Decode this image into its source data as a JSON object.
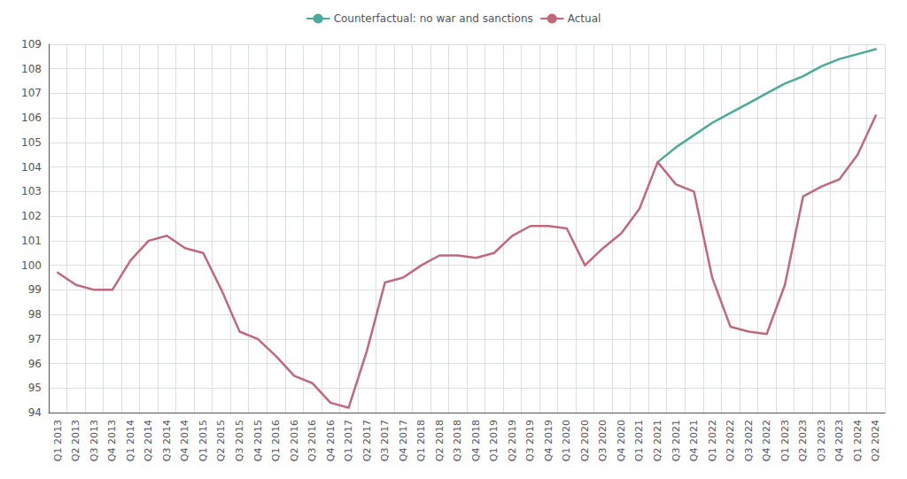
{
  "chart_data": {
    "type": "line",
    "categories": [
      "Q1 2013",
      "Q2 2013",
      "Q3 2013",
      "Q4 2013",
      "Q1 2014",
      "Q2 2014",
      "Q3 2014",
      "Q4 2014",
      "Q1 2015",
      "Q2 2015",
      "Q3 2015",
      "Q4 2015",
      "Q1 2016",
      "Q2 2016",
      "Q3 2016",
      "Q4 2016",
      "Q1 2017",
      "Q2 2017",
      "Q3 2017",
      "Q4 2017",
      "Q1 2018",
      "Q2 2018",
      "Q3 2018",
      "Q4 2018",
      "Q1 2019",
      "Q2 2019",
      "Q3 2019",
      "Q4 2019",
      "Q1 2020",
      "Q2 2020",
      "Q3 2020",
      "Q4 2020",
      "Q1 2021",
      "Q2 2021",
      "Q3 2021",
      "Q4 2021",
      "Q1 2022",
      "Q2 2022",
      "Q3 2022",
      "Q4 2022",
      "Q1 2023",
      "Q2 2023",
      "Q3 2023",
      "Q4 2023",
      "Q1 2024",
      "Q2 2024"
    ],
    "series": [
      {
        "name": "Counterfactual: no war and sanctions",
        "color": "#4aab9b",
        "values": [
          null,
          null,
          null,
          null,
          null,
          null,
          null,
          null,
          null,
          null,
          null,
          null,
          null,
          null,
          null,
          null,
          null,
          null,
          null,
          null,
          null,
          null,
          null,
          null,
          null,
          null,
          null,
          null,
          null,
          null,
          null,
          null,
          null,
          104.2,
          104.8,
          105.3,
          105.8,
          106.2,
          106.6,
          107.0,
          107.4,
          107.7,
          108.1,
          108.4,
          108.6,
          108.8
        ]
      },
      {
        "name": "Actual",
        "color": "#c0697a",
        "values": [
          99.7,
          99.2,
          99.0,
          99.0,
          100.2,
          101.0,
          101.2,
          100.7,
          100.5,
          99.0,
          97.3,
          97.0,
          96.3,
          95.5,
          95.2,
          94.4,
          94.2,
          96.5,
          99.3,
          99.5,
          100.0,
          100.4,
          100.4,
          100.3,
          100.5,
          101.2,
          101.6,
          101.6,
          101.5,
          100.0,
          100.7,
          101.3,
          102.3,
          104.2,
          103.3,
          103.0,
          99.5,
          97.5,
          97.3,
          97.2,
          99.2,
          102.8,
          103.2,
          103.5,
          104.5,
          106.1
        ]
      }
    ],
    "ylim": [
      94,
      109
    ],
    "yticks": [
      94,
      95,
      96,
      97,
      98,
      99,
      100,
      101,
      102,
      103,
      104,
      105,
      106,
      107,
      108,
      109
    ],
    "grid": true,
    "legend": "top"
  }
}
